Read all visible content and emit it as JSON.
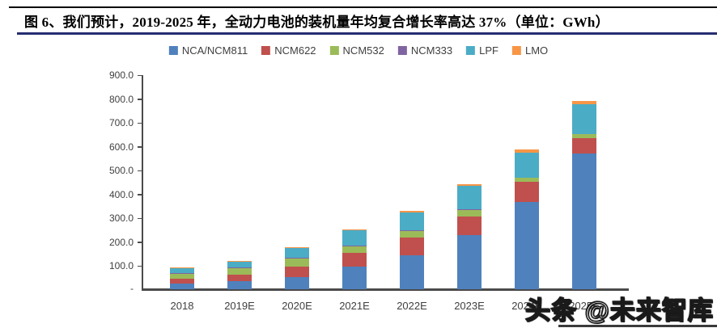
{
  "figure": {
    "title": "图 6、我们预计，2019-2025 年，全动力电池的装机量年均复合增长率高达 37%（单位：GWh）"
  },
  "watermark": {
    "text": "头条 @未来智库"
  },
  "chart_data": {
    "type": "bar",
    "stacked": true,
    "title": "",
    "xlabel": "",
    "ylabel": "",
    "unit": "GWh",
    "ylim": [
      0,
      900
    ],
    "grid": false,
    "legend_position": "top",
    "y_tick_labels": [
      "900.0",
      "800.0",
      "700.0",
      "600.0",
      "500.0",
      "400.0",
      "300.0",
      "200.0",
      "100.0"
    ],
    "y_zero_label": "-",
    "categories": [
      "2018",
      "2019E",
      "2020E",
      "2021E",
      "2022E",
      "2023E",
      "2024E",
      "2025E"
    ],
    "series": [
      {
        "name": "NCA/NCM811",
        "color": "#4F81BD",
        "values": [
          23,
          33,
          51,
          94,
          141,
          226,
          364,
          570
        ]
      },
      {
        "name": "NCM622",
        "color": "#C0504D",
        "values": [
          20,
          27,
          44,
          59,
          74,
          79,
          86,
          62
        ]
      },
      {
        "name": "NCM532",
        "color": "#9BBB59",
        "values": [
          21,
          29,
          33,
          28,
          28,
          28,
          16,
          17
        ]
      },
      {
        "name": "NCM333",
        "color": "#8064A2",
        "values": [
          3,
          3,
          3,
          3,
          3,
          3,
          2,
          2
        ]
      },
      {
        "name": "LPF",
        "color": "#4BACC6",
        "values": [
          21,
          24,
          40,
          62,
          76,
          96,
          104,
          124
        ]
      },
      {
        "name": "LMO",
        "color": "#F79646",
        "values": [
          5,
          4,
          6,
          6,
          7,
          7,
          13,
          15
        ]
      }
    ],
    "totals": [
      93,
      120,
      177,
      252,
      329,
      439,
      585,
      790
    ]
  }
}
